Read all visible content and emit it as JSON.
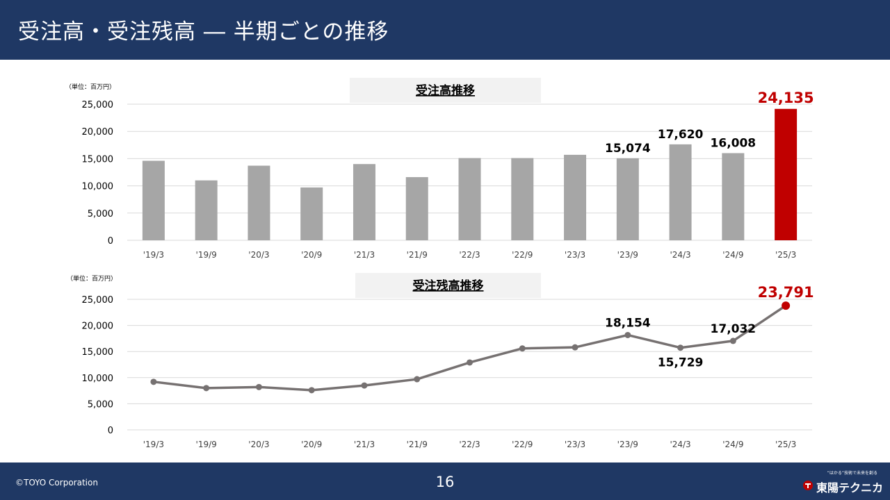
{
  "header": {
    "title": "受注高・受注残高 ― 半期ごとの推移"
  },
  "footer": {
    "copyright": "©TOYO Corporation",
    "page_number": "16",
    "logo_tagline": "“はかる”技術で未来を創る",
    "logo_name": "東陽テクニカ"
  },
  "chart_data": [
    {
      "type": "bar",
      "title": "受注高推移",
      "unit": "（単位：百万円）",
      "categories": [
        "'19/3",
        "'19/9",
        "'20/3",
        "'20/9",
        "'21/3",
        "'21/9",
        "'22/3",
        "'22/9",
        "'23/3",
        "'23/9",
        "'24/3",
        "'24/9",
        "'25/3"
      ],
      "values": [
        14600,
        11000,
        13700,
        9700,
        14000,
        11600,
        15100,
        15100,
        15700,
        15074,
        17620,
        16008,
        24135
      ],
      "data_labels": [
        "",
        "",
        "",
        "",
        "",
        "",
        "",
        "",
        "",
        "15,074",
        "17,620",
        "16,008",
        "24,135"
      ],
      "highlight_index": 12,
      "colors": {
        "bar": "#a6a6a6",
        "highlight": "#c00000",
        "label": "#000000",
        "highlight_label": "#c00000"
      },
      "ylim": [
        0,
        25000
      ],
      "yticks": [
        0,
        5000,
        10000,
        15000,
        20000,
        25000
      ],
      "ytick_labels": [
        "0",
        "5,000",
        "10,000",
        "15,000",
        "20,000",
        "25,000"
      ],
      "grid": true
    },
    {
      "type": "line",
      "title": "受注残高推移",
      "unit": "（単位：百万円）",
      "categories": [
        "'19/3",
        "'19/9",
        "'20/3",
        "'20/9",
        "'21/3",
        "'21/9",
        "'22/3",
        "'22/9",
        "'23/3",
        "'23/9",
        "'24/3",
        "'24/9",
        "'25/3"
      ],
      "values": [
        9200,
        8000,
        8200,
        7600,
        8500,
        9700,
        12900,
        15600,
        15800,
        18154,
        15729,
        17032,
        23791
      ],
      "data_labels": [
        "",
        "",
        "",
        "",
        "",
        "",
        "",
        "",
        "",
        "18,154",
        "15,729",
        "17,032",
        "23,791"
      ],
      "label_positions": [
        "",
        "",
        "",
        "",
        "",
        "",
        "",
        "",
        "",
        "above",
        "below",
        "above",
        "above"
      ],
      "highlight_index": 12,
      "colors": {
        "line": "#767171",
        "highlight": "#c00000",
        "label": "#000000",
        "highlight_label": "#c00000"
      },
      "ylim": [
        0,
        25000
      ],
      "yticks": [
        0,
        5000,
        10000,
        15000,
        20000,
        25000
      ],
      "ytick_labels": [
        "0",
        "5,000",
        "10,000",
        "15,000",
        "20,000",
        "25,000"
      ],
      "grid": true
    }
  ]
}
